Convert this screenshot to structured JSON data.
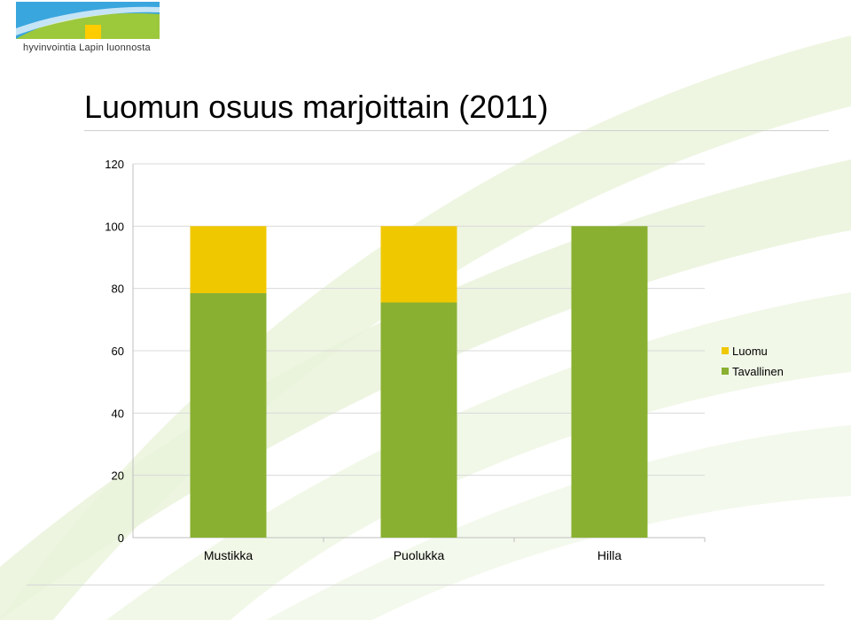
{
  "header": {
    "logo_caption": "hyvinvointia Lapin luonnosta"
  },
  "colors": {
    "luomu": "#f0c800",
    "tavallinen": "#8ab031",
    "grid": "#d9d9d9",
    "axis": "#bfbfbf",
    "background_swoosh": "#e6f2d3",
    "logo_blue": "#3aa6de",
    "logo_green": "#9cc83c",
    "logo_yellow": "#ffcc00"
  },
  "chart_data": {
    "type": "bar",
    "stacked": true,
    "title": "Luomun osuus marjoittain (2011)",
    "categories": [
      "Mustikka",
      "Puolukka",
      "Hilla"
    ],
    "series": [
      {
        "name": "Tavallinen",
        "values": [
          78.5,
          75.5,
          100
        ],
        "color": "#8ab031"
      },
      {
        "name": "Luomu",
        "values": [
          21.5,
          24.5,
          0
        ],
        "color": "#f0c800"
      }
    ],
    "ylim": [
      0,
      120
    ],
    "yticks": [
      0,
      20,
      40,
      60,
      80,
      100,
      120
    ],
    "grid": true,
    "legend": "right",
    "legend_entries": [
      "Luomu",
      "Tavallinen"
    ]
  }
}
